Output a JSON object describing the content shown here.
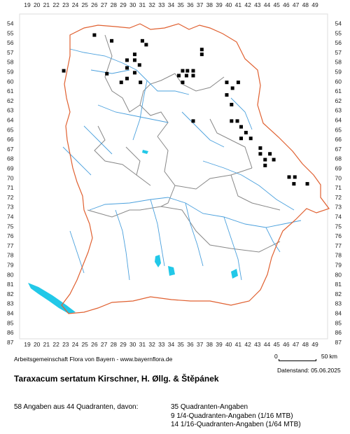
{
  "grid": {
    "x_labels": [
      "19",
      "20",
      "21",
      "22",
      "23",
      "24",
      "25",
      "26",
      "27",
      "28",
      "29",
      "30",
      "31",
      "32",
      "33",
      "34",
      "35",
      "36",
      "37",
      "38",
      "39",
      "40",
      "41",
      "42",
      "43",
      "44",
      "45",
      "46",
      "47",
      "48",
      "49"
    ],
    "y_labels": [
      "54",
      "55",
      "56",
      "57",
      "58",
      "59",
      "60",
      "61",
      "62",
      "63",
      "64",
      "65",
      "66",
      "67",
      "68",
      "69",
      "70",
      "71",
      "72",
      "73",
      "74",
      "75",
      "76",
      "77",
      "78",
      "79",
      "80",
      "81",
      "82",
      "83",
      "84",
      "85",
      "86",
      "87"
    ]
  },
  "records": [
    {
      "x": 26,
      "y": 55.2
    },
    {
      "x": 27.8,
      "y": 55.8
    },
    {
      "x": 31,
      "y": 55.8
    },
    {
      "x": 31.4,
      "y": 56.2
    },
    {
      "x": 37.2,
      "y": 56.7
    },
    {
      "x": 37.2,
      "y": 57.2
    },
    {
      "x": 30.2,
      "y": 57.2
    },
    {
      "x": 29.4,
      "y": 57.8
    },
    {
      "x": 30.2,
      "y": 57.8
    },
    {
      "x": 30.7,
      "y": 58.3
    },
    {
      "x": 29.4,
      "y": 58.6
    },
    {
      "x": 22.8,
      "y": 58.9
    },
    {
      "x": 35.2,
      "y": 58.9
    },
    {
      "x": 35.7,
      "y": 58.9
    },
    {
      "x": 36.3,
      "y": 58.9
    },
    {
      "x": 30.2,
      "y": 59.1
    },
    {
      "x": 27.3,
      "y": 59.2
    },
    {
      "x": 34.8,
      "y": 59.4
    },
    {
      "x": 35.6,
      "y": 59.4
    },
    {
      "x": 36.3,
      "y": 59.4
    },
    {
      "x": 29.4,
      "y": 59.7
    },
    {
      "x": 28.8,
      "y": 60.1
    },
    {
      "x": 30.8,
      "y": 60.1
    },
    {
      "x": 35.2,
      "y": 60.1
    },
    {
      "x": 39.8,
      "y": 60.1
    },
    {
      "x": 41,
      "y": 60.1
    },
    {
      "x": 40.4,
      "y": 60.7
    },
    {
      "x": 39.8,
      "y": 61.4
    },
    {
      "x": 40.3,
      "y": 62.4
    },
    {
      "x": 36.3,
      "y": 64.1
    },
    {
      "x": 40.3,
      "y": 64.1
    },
    {
      "x": 40.9,
      "y": 64.1
    },
    {
      "x": 41.3,
      "y": 64.7
    },
    {
      "x": 41.8,
      "y": 65.3
    },
    {
      "x": 41.3,
      "y": 65.9
    },
    {
      "x": 42.3,
      "y": 65.9
    },
    {
      "x": 43.3,
      "y": 66.9
    },
    {
      "x": 43.3,
      "y": 67.5
    },
    {
      "x": 44.3,
      "y": 67.5
    },
    {
      "x": 43.8,
      "y": 68.1
    },
    {
      "x": 44.7,
      "y": 68.1
    },
    {
      "x": 43.8,
      "y": 68.7
    },
    {
      "x": 46.3,
      "y": 69.9
    },
    {
      "x": 46.9,
      "y": 69.9
    },
    {
      "x": 46.8,
      "y": 70.6
    },
    {
      "x": 48.2,
      "y": 70.6
    }
  ],
  "credit": "Arbeitsgemeinschaft Flora von Bayern - www.bayernflora.de",
  "scale": {
    "left": "0",
    "right": "50 km"
  },
  "date_label": "Datenstand: 05.06.2025",
  "title": "Taraxacum sertatum Kirschner, H. Øllg. & Štěpánek",
  "stats": {
    "summary": "58 Angaben aus 44 Quadranten, davon:",
    "line1": "35 Quadranten-Angaben",
    "line2": "9 1/4-Quadranten-Angaben (1/16 MTB)",
    "line3": "14 1/16-Quadranten-Angaben (1/64 MTB)"
  },
  "colors": {
    "border_bavaria": "#e06030",
    "border_district": "#888888",
    "river": "#4aa0dd",
    "lake": "#22c8e8",
    "grid": "#dddddd",
    "marker": "#000000"
  }
}
